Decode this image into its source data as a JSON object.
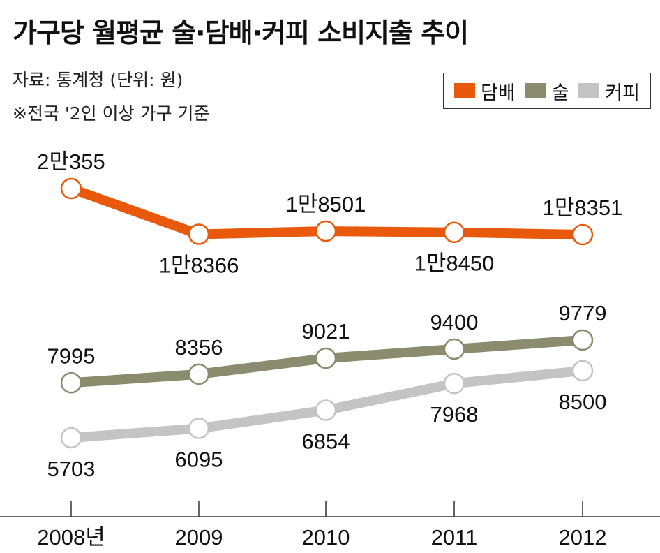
{
  "title": "가구당 월평균 술·담배·커피 소비지출 추이",
  "source": "자료: 통계청 (단위: 원)",
  "basis": "※전국 '2인 이상 가구 기준",
  "legend": [
    {
      "label": "담배",
      "color": "#e8590c"
    },
    {
      "label": "술",
      "color": "#8b8b6e"
    },
    {
      "label": "커피",
      "color": "#c4c4c4"
    }
  ],
  "chart_data": {
    "type": "line",
    "categories": [
      "2008년",
      "2009",
      "2010",
      "2011",
      "2012"
    ],
    "series": [
      {
        "name": "담배",
        "color": "#e8590c",
        "values": [
          20355,
          18366,
          18501,
          18450,
          18351
        ],
        "labels": [
          "2만355",
          "1만8366",
          "1만8501",
          "1만8450",
          "1만8351"
        ],
        "label_pos": [
          "above",
          "below",
          "above",
          "below",
          "above"
        ]
      },
      {
        "name": "술",
        "color": "#8b8b6e",
        "values": [
          7995,
          8356,
          9021,
          9400,
          9779
        ],
        "labels": [
          "7995",
          "8356",
          "9021",
          "9400",
          "9779"
        ],
        "label_pos": [
          "above",
          "above",
          "above",
          "above",
          "above"
        ]
      },
      {
        "name": "커피",
        "color": "#c4c4c4",
        "values": [
          5703,
          6095,
          6854,
          7968,
          8500
        ],
        "labels": [
          "5703",
          "6095",
          "6854",
          "7968",
          "8500"
        ],
        "label_pos": [
          "below",
          "below",
          "below",
          "below",
          "below"
        ]
      }
    ],
    "xlabel": "",
    "ylabel": ""
  }
}
